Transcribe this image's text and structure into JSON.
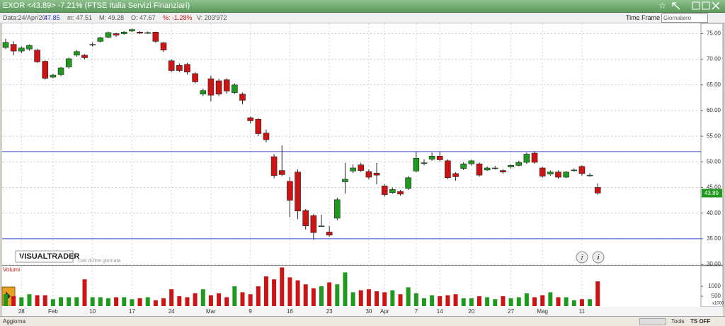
{
  "header": {
    "title": "EXOR <43.89> -7.21%  (FTSE Italia Servizi Finanziari)",
    "date": "Data:24/Apr/20:",
    "close": "47.85",
    "min": "m: 47.51",
    "max": "M: 49.28",
    "open": "O: 47.67",
    "change": "%: -1.28%",
    "volume": "V: 203'972",
    "time_frame_label": "Time Frame",
    "time_frame": "Giornaliero"
  },
  "watermark": "VISUALTRADER",
  "watermark_sub": "Dati di fine giornata",
  "footer": {
    "refresh": "Aggiorna",
    "tools": "Tools",
    "ts": "TS OFF"
  },
  "chart_data": {
    "type": "candlestick",
    "categories": [
      null,
      null,
      "28",
      null,
      null,
      null,
      "Feb",
      null,
      null,
      null,
      null,
      "10",
      null,
      null,
      null,
      null,
      "17",
      null,
      null,
      null,
      null,
      "24",
      null,
      null,
      null,
      null,
      "Mar",
      null,
      null,
      null,
      null,
      "9",
      null,
      null,
      null,
      null,
      "16",
      null,
      null,
      null,
      null,
      "23",
      null,
      null,
      null,
      null,
      "30",
      null,
      "Apr",
      null,
      null,
      null,
      "7",
      null,
      null,
      "14",
      null,
      null,
      null,
      "20",
      null,
      null,
      null,
      null,
      "27",
      null,
      null,
      null,
      "Mag",
      null,
      null,
      null,
      null,
      "11",
      null,
      null
    ],
    "open": [
      72.3,
      72.9,
      71.6,
      72.0,
      71.8,
      69.6,
      66.5,
      67.0,
      68.5,
      70.8,
      70.8,
      72.9,
      73.5,
      74.3,
      75.0,
      75.0,
      75.5,
      75.3,
      75.2,
      75.3,
      73.2,
      69.7,
      68.8,
      69.0,
      67.2,
      63.2,
      66.2,
      65.8,
      66.0,
      63.5,
      63.2,
      58.6,
      58.3,
      55.6,
      51.0,
      48.3,
      46.2,
      48.0,
      40.5,
      39.5,
      37.5,
      36.3,
      39.0,
      46.1,
      48.2,
      49.4,
      48.1,
      47.8,
      45.3,
      44.0,
      44.2,
      44.8,
      48.2,
      49.8,
      50.5,
      51.1,
      50.2,
      47.7,
      48.7,
      49.6,
      49.6,
      48.4,
      48.8,
      48.3,
      49.0,
      49.3,
      49.9,
      51.7,
      48.8,
      47.6,
      48.0,
      47.0,
      48.4,
      49.1,
      47.4,
      45.0
    ],
    "high": [
      74.0,
      73.5,
      72.5,
      72.9,
      72.0,
      69.8,
      67.2,
      68.5,
      70.3,
      71.8,
      71.0,
      73.3,
      74.4,
      75.4,
      75.2,
      75.5,
      76.0,
      75.5,
      75.4,
      75.4,
      73.4,
      70.0,
      69.2,
      69.3,
      67.5,
      64.3,
      66.8,
      66.2,
      66.3,
      65.3,
      63.5,
      58.8,
      58.5,
      56.3,
      51.5,
      53.2,
      47.0,
      48.5,
      40.8,
      39.8,
      39.7,
      37.5,
      43.0,
      49.8,
      49.5,
      49.8,
      48.5,
      49.8,
      45.6,
      45.0,
      44.5,
      47.2,
      52.0,
      50.5,
      51.8,
      52.0,
      50.5,
      48.0,
      49.9,
      50.4,
      49.9,
      49.1,
      49.2,
      48.6,
      49.5,
      50.2,
      51.8,
      52.0,
      49.0,
      48.3,
      48.3,
      48.2,
      48.7,
      49.3,
      47.8,
      45.8
    ],
    "low": [
      72.0,
      70.8,
      71.2,
      71.7,
      69.3,
      66.0,
      66.3,
      66.7,
      68.2,
      70.5,
      70.0,
      72.5,
      73.3,
      74.1,
      74.4,
      74.8,
      75.3,
      74.9,
      75.0,
      73.2,
      71.4,
      67.5,
      67.5,
      67.0,
      65.3,
      62.8,
      61.8,
      62.8,
      63.3,
      63.2,
      61.2,
      57.5,
      55.0,
      53.8,
      46.8,
      47.2,
      39.2,
      38.8,
      36.8,
      34.8,
      37.3,
      35.4,
      38.6,
      43.8,
      47.8,
      48.0,
      46.6,
      45.6,
      43.2,
      43.8,
      43.4,
      44.5,
      48.0,
      49.3,
      50.2,
      50.1,
      46.6,
      46.3,
      48.4,
      49.3,
      47.1,
      48.2,
      48.5,
      47.7,
      48.7,
      49.1,
      49.6,
      49.6,
      46.9,
      47.3,
      46.7,
      46.8,
      48.1,
      47.3,
      47.1,
      43.6
    ],
    "close": [
      73.3,
      71.6,
      72.2,
      72.7,
      69.5,
      66.3,
      66.9,
      68.3,
      70.1,
      71.5,
      70.3,
      72.9,
      74.2,
      75.2,
      74.7,
      75.3,
      75.8,
      75.1,
      75.2,
      73.5,
      71.8,
      67.8,
      67.8,
      67.5,
      65.6,
      63.9,
      63.0,
      63.2,
      63.8,
      65.0,
      62.0,
      58.0,
      55.5,
      54.3,
      47.3,
      47.5,
      42.5,
      40.4,
      37.5,
      36.2,
      37.5,
      35.7,
      42.6,
      46.6,
      48.8,
      48.3,
      47.0,
      47.4,
      43.6,
      44.6,
      43.7,
      46.9,
      50.7,
      49.8,
      51.1,
      50.4,
      46.9,
      47.1,
      49.6,
      50.2,
      47.4,
      48.8,
      48.8,
      48.0,
      49.3,
      49.9,
      51.5,
      49.9,
      47.2,
      48.0,
      47.0,
      48.0,
      48.4,
      47.7,
      47.4,
      43.9
    ],
    "up_color": "#1f9a1f",
    "down_color": "#cc1414",
    "ylim": [
      30,
      77
    ],
    "yticks": [
      {
        "value": 30,
        "label": "30.00"
      },
      {
        "value": 35,
        "label": "35.00"
      },
      {
        "value": 40,
        "label": "40.00"
      },
      {
        "value": 45,
        "label": "45.00"
      },
      {
        "value": 50,
        "label": "50.00"
      },
      {
        "value": 55,
        "label": "55.00"
      },
      {
        "value": 60,
        "label": "60.00"
      },
      {
        "value": 65,
        "label": "65.00"
      },
      {
        "value": 70,
        "label": "70.00"
      },
      {
        "value": 75,
        "label": "75.00"
      }
    ],
    "grid": true,
    "hlines": [
      52,
      35
    ],
    "hline_color": "#3a4fd0",
    "last_price": 43.89,
    "volume": {
      "label": "Volumi",
      "unit": "x1000",
      "values": [
        600,
        500,
        450,
        600,
        550,
        550,
        350,
        450,
        450,
        450,
        1350,
        450,
        450,
        400,
        450,
        450,
        350,
        400,
        450,
        300,
        400,
        850,
        500,
        450,
        650,
        850,
        550,
        650,
        450,
        1000,
        700,
        600,
        1000,
        1500,
        1350,
        1950,
        1450,
        1300,
        1100,
        900,
        1000,
        1200,
        1100,
        1700,
        700,
        800,
        850,
        750,
        700,
        800,
        600,
        950,
        650,
        400,
        550,
        500,
        550,
        600,
        400,
        400,
        500,
        450,
        350,
        500,
        400,
        450,
        650,
        450,
        550,
        700,
        450,
        450,
        300,
        350,
        350,
        1250
      ],
      "ylim": [
        0,
        2000
      ],
      "yticks": [
        500,
        1000
      ]
    }
  }
}
